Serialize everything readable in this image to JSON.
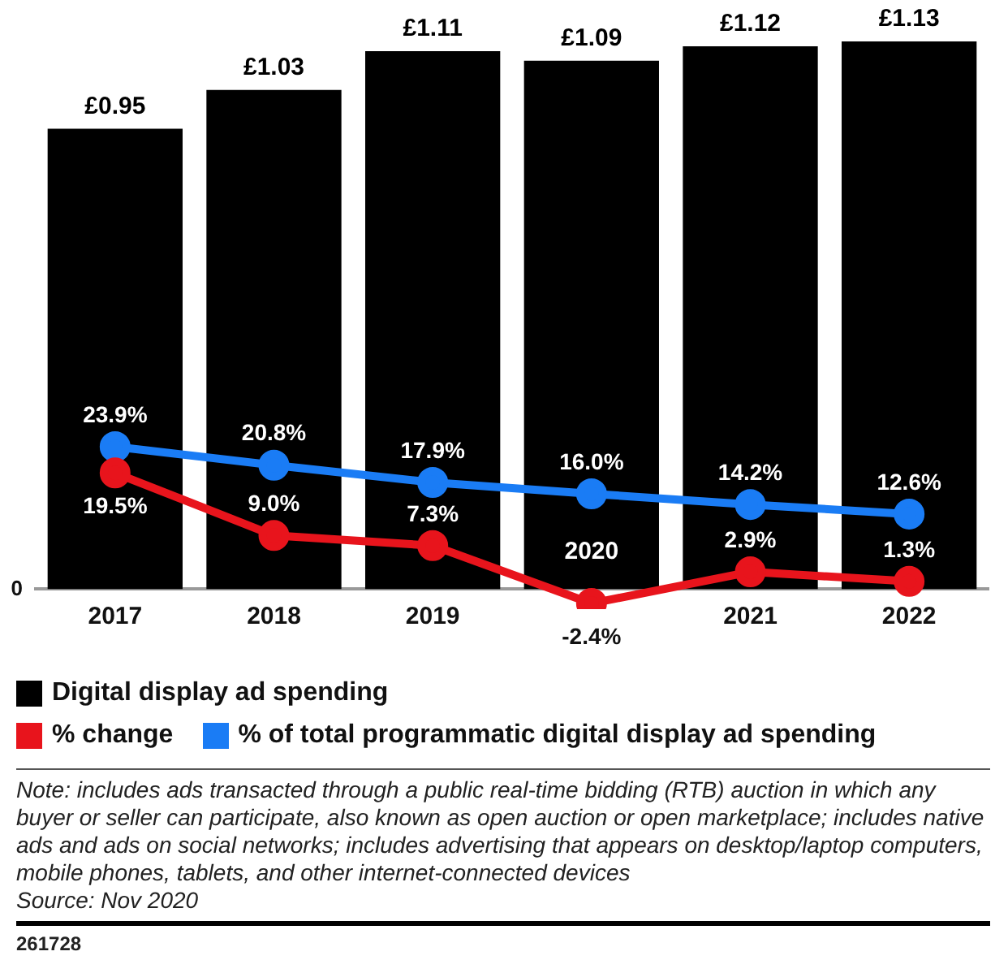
{
  "chart_data": {
    "type": "bar",
    "categories": [
      "2017",
      "2018",
      "2019",
      "2020",
      "2021",
      "2022"
    ],
    "series": [
      {
        "name": "Digital display ad spending",
        "type": "bar",
        "color": "#000000",
        "values": [
          0.95,
          1.03,
          1.11,
          1.09,
          1.12,
          1.13
        ],
        "value_labels": [
          "£0.95",
          "£1.03",
          "£1.11",
          "£1.09",
          "£1.12",
          "£1.13"
        ]
      },
      {
        "name": "% change",
        "type": "line",
        "axis": "y2",
        "color": "#e8141c",
        "values": [
          19.5,
          9.0,
          7.3,
          -2.4,
          2.9,
          1.3
        ],
        "value_labels": [
          "19.5%",
          "9.0%",
          "7.3%",
          "-2.4%",
          "2.9%",
          "1.3%"
        ]
      },
      {
        "name": "% of total programmatic digital display ad spending",
        "type": "line",
        "axis": "y2",
        "color": "#1a7cf5",
        "values": [
          23.9,
          20.8,
          17.9,
          16.0,
          14.2,
          12.6
        ],
        "value_labels": [
          "23.9%",
          "20.8%",
          "17.9%",
          "16.0%",
          "14.2%",
          "12.6%"
        ]
      }
    ],
    "legend": "bottom",
    "marker": "circle",
    "annotations": [
      "0",
      "Note: includes ads transacted through a public real-time bidding (RTB) auction in which any buyer or seller can participate, also known as open auction or open marketplace; includes native ads and ads on social networks; includes advertising that appears on desktop/laptop computers, mobile phones, tablets, and other internet-connected devices",
      "Source: Nov 2020",
      "261728"
    ]
  }
}
